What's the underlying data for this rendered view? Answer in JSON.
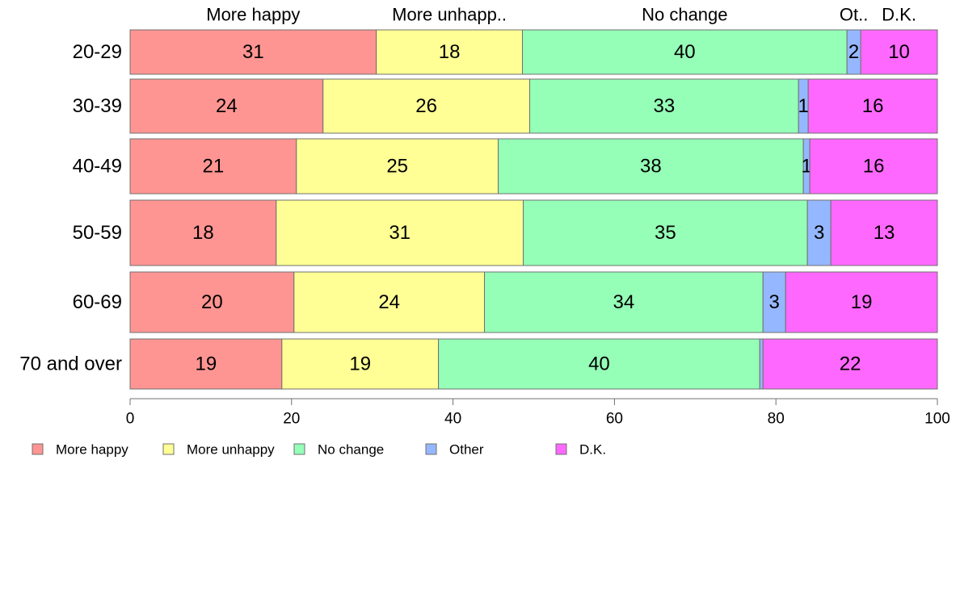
{
  "chart_data": {
    "type": "bar",
    "orientation": "horizontal",
    "stacked": true,
    "categories": [
      "20-29",
      "30-39",
      "40-49",
      "50-59",
      "60-69",
      "70 and over"
    ],
    "series": [
      {
        "name": "More happy",
        "color": "#FF9592",
        "values": [
          30.5,
          23.9,
          20.6,
          18.1,
          20.3,
          18.8
        ],
        "labels": [
          "31",
          "24",
          "21",
          "18",
          "20",
          "19"
        ]
      },
      {
        "name": "More unhappy",
        "color": "#FFFF95",
        "values": [
          18.1,
          25.6,
          25.0,
          30.6,
          23.6,
          19.4
        ],
        "labels": [
          "18",
          "26",
          "25",
          "31",
          "24",
          "19"
        ]
      },
      {
        "name": "No change",
        "color": "#95FFB7",
        "values": [
          40.2,
          33.3,
          37.8,
          35.2,
          34.5,
          39.8
        ],
        "labels": [
          "40",
          "33",
          "38",
          "35",
          "34",
          "40"
        ]
      },
      {
        "name": "Other",
        "color": "#95B7FF",
        "values": [
          1.7,
          1.2,
          0.8,
          2.9,
          2.8,
          0.4
        ],
        "labels": [
          "2",
          "1",
          "1",
          "3",
          "3",
          ""
        ]
      },
      {
        "name": "D.K.",
        "color": "#FF68FF",
        "values": [
          9.5,
          16.0,
          15.8,
          13.2,
          18.8,
          21.6
        ],
        "labels": [
          "10",
          "16",
          "16",
          "13",
          "19",
          "22"
        ]
      }
    ],
    "top_labels": [
      "More happy",
      "More unhapp..",
      "No change",
      "Ot..",
      "D.K."
    ],
    "xlim": [
      0,
      100
    ],
    "xticks": [
      0,
      20,
      40,
      60,
      80,
      100
    ],
    "grid": false,
    "legend_position": "bottom"
  }
}
